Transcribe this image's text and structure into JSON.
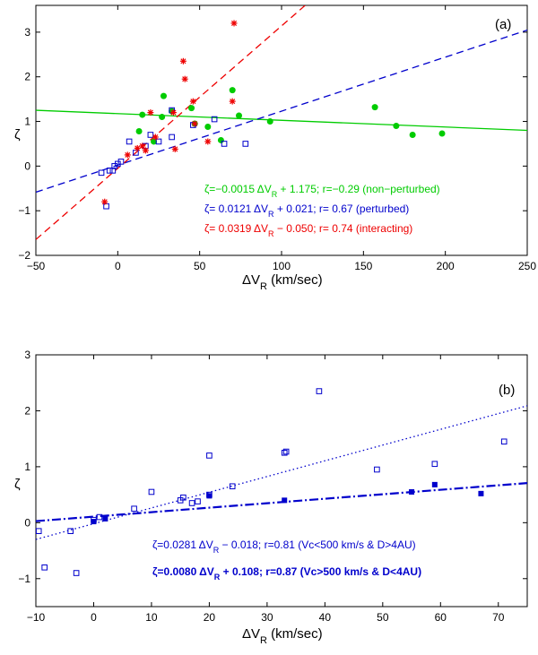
{
  "chart_data": [
    {
      "type": "scatter",
      "panel_label": "(a)",
      "xlabel": "ΔV",
      "xlabel_sub": "R",
      "xlabel_unit": " (km/sec)",
      "ylabel": "ζ",
      "xlim": [
        -50,
        250
      ],
      "ylim": [
        -2,
        3.6
      ],
      "xticks": [
        -50,
        0,
        50,
        100,
        150,
        200,
        250
      ],
      "yticks": [
        -2,
        -1,
        0,
        1,
        2,
        3
      ],
      "series": [
        {
          "name": "non-perturbed",
          "marker": "filled-circle",
          "color": "#00cc00",
          "x": [
            13,
            15,
            22,
            27,
            28,
            33,
            45,
            47,
            55,
            63,
            70,
            74,
            93,
            157,
            170,
            180,
            198
          ],
          "y": [
            0.78,
            1.15,
            0.55,
            1.1,
            1.57,
            1.23,
            1.3,
            0.95,
            0.88,
            0.58,
            1.7,
            1.13,
            1.0,
            1.32,
            0.9,
            0.7,
            0.73
          ],
          "fit_label": "ζ=−0.0015 ΔV",
          "fit_label_sub": "R",
          "fit_label_rest": " + 1.175; r=−0.29 (non−perturbed)",
          "fit": {
            "slope": -0.0015,
            "intercept": 1.175
          },
          "line_style": "solid"
        },
        {
          "name": "perturbed",
          "marker": "open-square",
          "color": "#0000cc",
          "x": [
            -10,
            -7,
            -5,
            -3,
            -2,
            0,
            2,
            7,
            11,
            17,
            20,
            25,
            33,
            33,
            46,
            59,
            65,
            78
          ],
          "y": [
            -0.15,
            -0.9,
            -0.1,
            -0.1,
            0.0,
            0.05,
            0.1,
            0.55,
            0.3,
            0.45,
            0.7,
            0.55,
            1.25,
            0.65,
            0.92,
            1.05,
            0.5,
            0.5
          ],
          "fit_label": "ζ=  0.0121 ΔV",
          "fit_label_sub": "R",
          "fit_label_rest": " + 0.021;  r=  0.67 (perturbed)",
          "fit": {
            "slope": 0.0121,
            "intercept": 0.021
          },
          "line_style": "dashed"
        },
        {
          "name": "interacting",
          "marker": "asterisk",
          "color": "#ee0000",
          "x": [
            -8,
            6,
            12,
            15,
            17,
            20,
            23,
            34,
            35,
            40,
            41,
            46,
            47,
            55,
            70,
            71
          ],
          "y": [
            -0.8,
            0.25,
            0.4,
            0.45,
            0.35,
            1.2,
            0.65,
            1.2,
            0.38,
            2.35,
            1.95,
            1.45,
            0.95,
            0.55,
            1.45,
            3.2
          ],
          "fit_label": "ζ=  0.0319 ΔV",
          "fit_label_sub": "R",
          "fit_label_rest": " − 0.050;  r=  0.74 (interacting)",
          "fit": {
            "slope": 0.0319,
            "intercept": -0.05
          },
          "line_style": "dashed"
        }
      ]
    },
    {
      "type": "scatter",
      "panel_label": "(b)",
      "xlabel": "ΔV",
      "xlabel_sub": "R",
      "xlabel_unit": " (km/sec)",
      "ylabel": "ζ",
      "xlim": [
        -10,
        75
      ],
      "ylim": [
        -1.5,
        3
      ],
      "xticks": [
        -10,
        0,
        10,
        20,
        30,
        40,
        50,
        60,
        70
      ],
      "yticks": [
        -1,
        0,
        1,
        2,
        3
      ],
      "series": [
        {
          "name": "Vc<500 km/s & D>4AU",
          "marker": "open-square",
          "color": "#0000cc",
          "x": [
            -9.5,
            -8.5,
            -4,
            -3,
            0,
            1,
            7,
            10,
            15,
            15.5,
            17,
            18,
            20,
            20,
            24,
            33,
            33.3,
            39,
            49,
            59,
            71
          ],
          "y": [
            -0.15,
            -0.8,
            -0.15,
            -0.9,
            0.05,
            0.1,
            0.25,
            0.55,
            0.4,
            0.45,
            0.35,
            0.38,
            0.5,
            1.2,
            0.65,
            1.25,
            1.27,
            2.35,
            0.95,
            1.05,
            1.45
          ],
          "fit_label": "ζ=0.0281 ΔV",
          "fit_label_sub": "R",
          "fit_label_rest": " − 0.018; r=0.81 (Vc<500 km/s & D>4AU)",
          "fit": {
            "slope": 0.0281,
            "intercept": -0.018
          },
          "line_style": "dotted",
          "bold": false
        },
        {
          "name": "Vc>500 km/s & D<4AU",
          "marker": "filled-square",
          "color": "#0000cc",
          "x": [
            0,
            2,
            20,
            33,
            55,
            59,
            67
          ],
          "y": [
            0.02,
            0.07,
            0.48,
            0.4,
            0.55,
            0.68,
            0.52
          ],
          "fit_label": "ζ=0.0080 ΔV",
          "fit_label_sub": "R",
          "fit_label_rest": " + 0.108; r=0.87 (Vc>500 km/s & D<4AU)",
          "fit": {
            "slope": 0.008,
            "intercept": 0.108
          },
          "line_style": "dash-dot",
          "bold": true
        }
      ]
    }
  ]
}
